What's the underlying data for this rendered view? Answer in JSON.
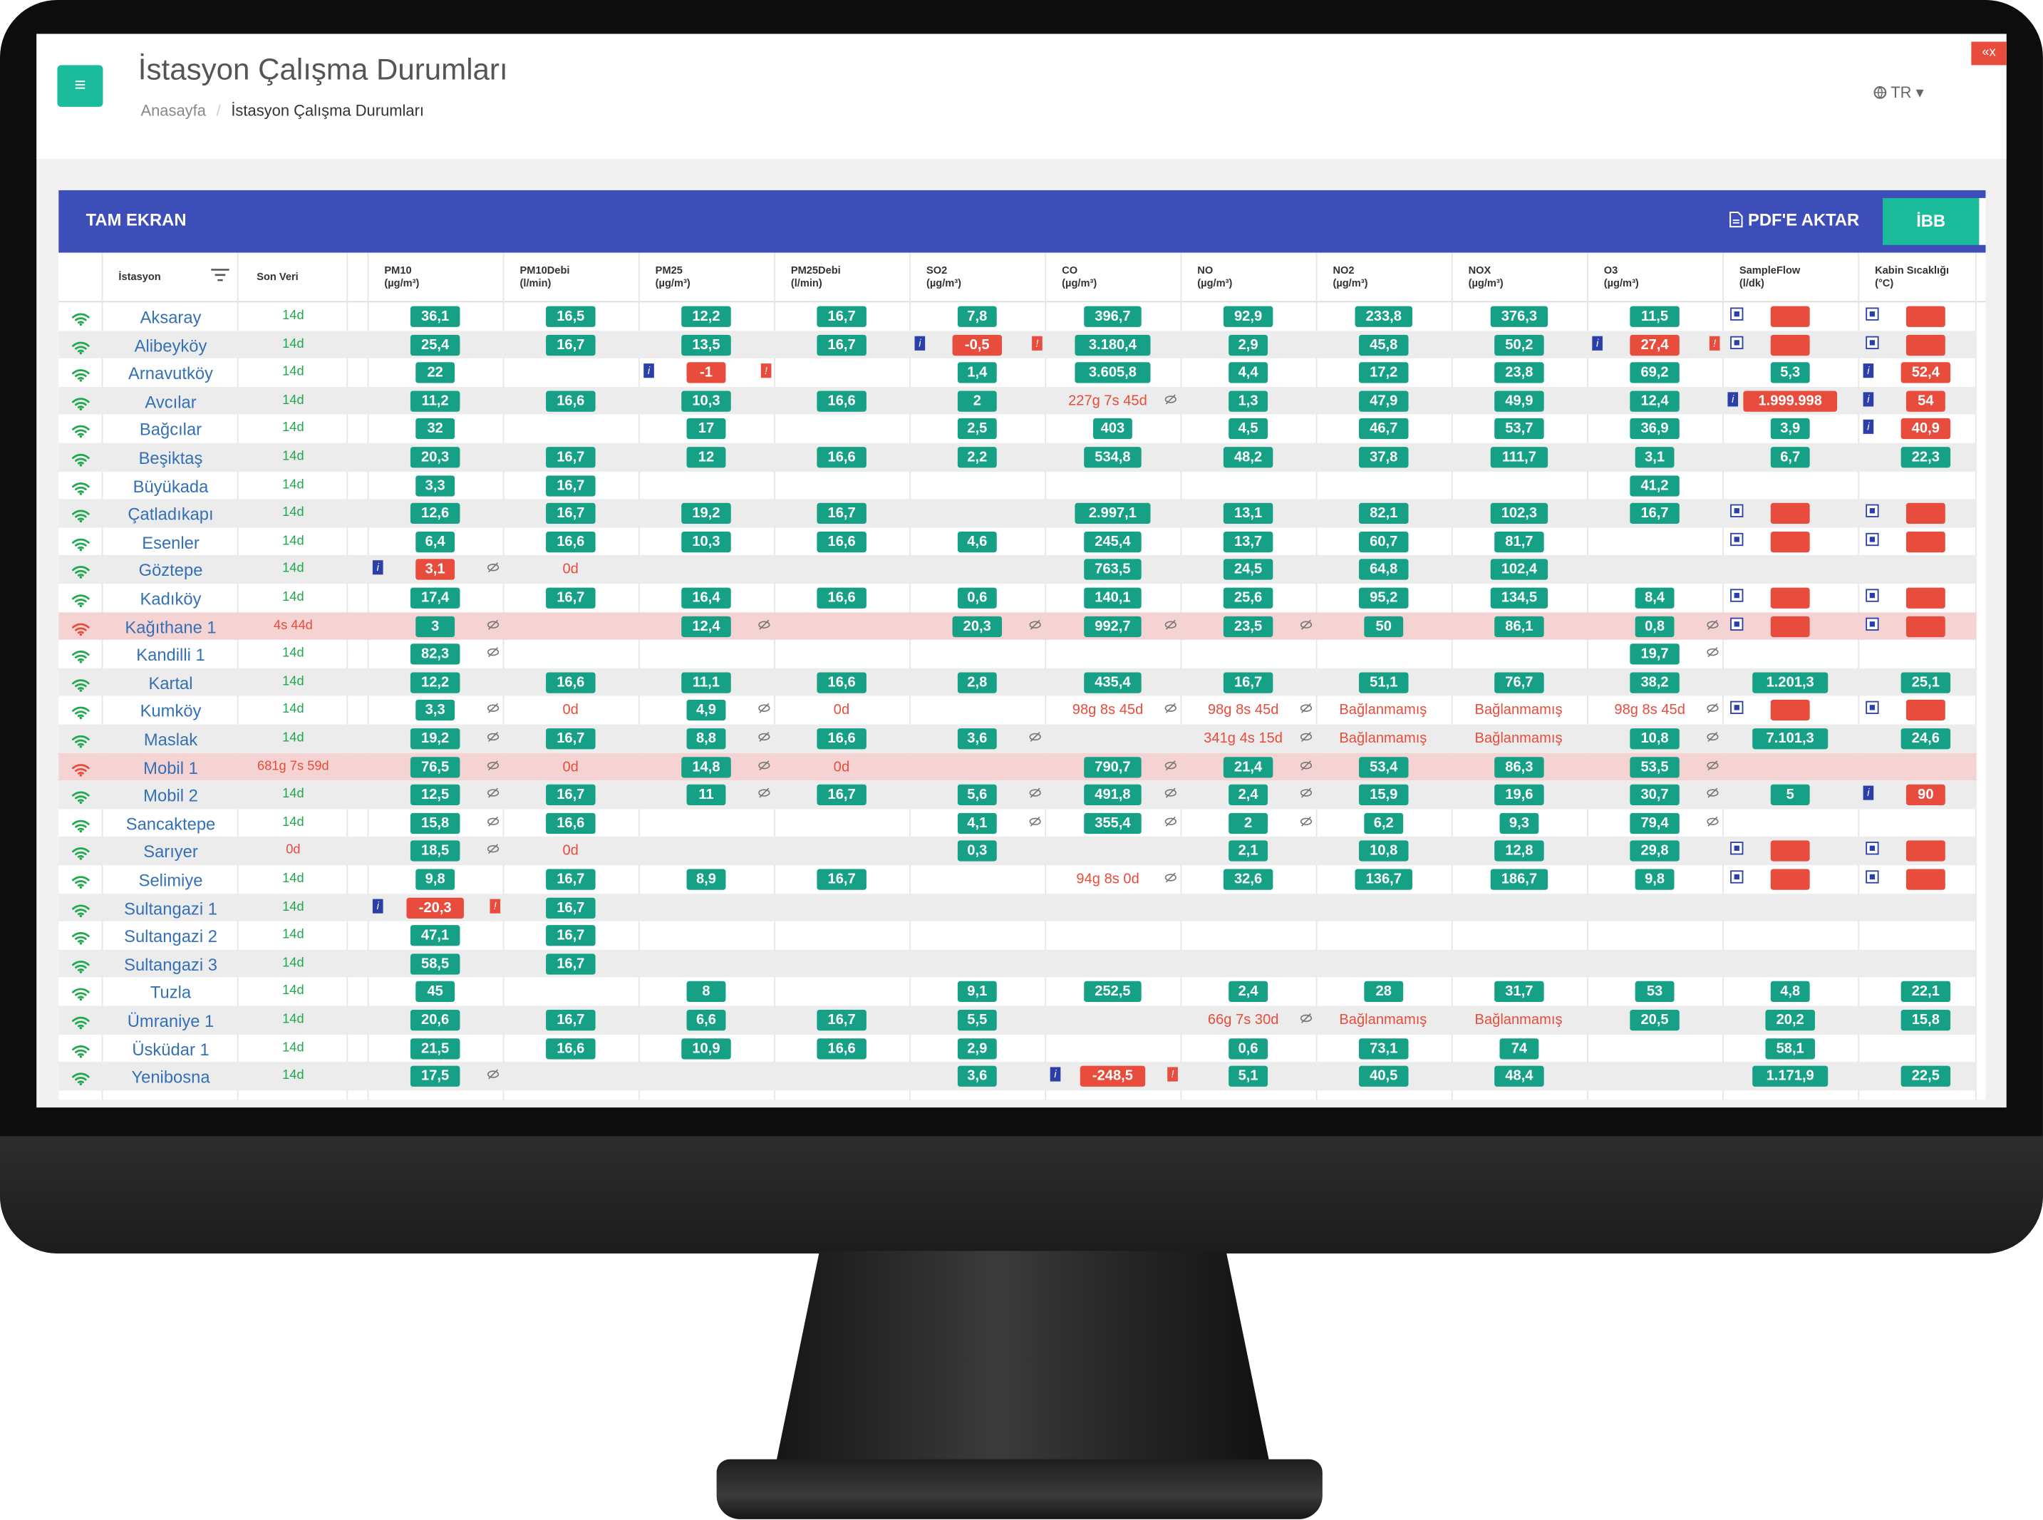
{
  "header": {
    "title": "İstasyon Çalışma Durumları",
    "breadcrumb_home": "Anasayfa",
    "breadcrumb_current": "İstasyon Çalışma Durumları",
    "lang": "TR",
    "menu_icon": "≡",
    "close_icon": "«x"
  },
  "panel": {
    "fullscreen": "TAM EKRAN",
    "pdf": "PDF'E AKTAR",
    "ibb": "İBB"
  },
  "columns": [
    {
      "key": "station",
      "title": "İstasyon"
    },
    {
      "key": "last",
      "title": "Son Veri"
    },
    {
      "key": "pm10",
      "title": "PM10",
      "unit": "(µg/m³)"
    },
    {
      "key": "pm10d",
      "title": "PM10Debi",
      "unit": "(l/min)"
    },
    {
      "key": "pm25",
      "title": "PM25",
      "unit": "(µg/m³)"
    },
    {
      "key": "pm25d",
      "title": "PM25Debi",
      "unit": "(l/min)"
    },
    {
      "key": "so2",
      "title": "SO2",
      "unit": "(µg/m³)"
    },
    {
      "key": "co",
      "title": "CO",
      "unit": "(µg/m³)"
    },
    {
      "key": "no",
      "title": "NO",
      "unit": "(µg/m³)"
    },
    {
      "key": "no2",
      "title": "NO2",
      "unit": "(µg/m³)"
    },
    {
      "key": "nox",
      "title": "NOX",
      "unit": "(µg/m³)"
    },
    {
      "key": "o3",
      "title": "O3",
      "unit": "(µg/m³)"
    },
    {
      "key": "sf",
      "title": "SampleFlow",
      "unit": "(l/dk)"
    },
    {
      "key": "kabin",
      "title": "Kabin Sıcaklığı",
      "unit": "(°C)"
    }
  ],
  "colors": {
    "green": "#16a085",
    "red": "#e74c3c",
    "panel": "#3e4eb8",
    "link": "#3470b6"
  },
  "rows": [
    {
      "name": "Aksaray",
      "last": "14d",
      "cells": [
        "g:36,1",
        "g:16,5",
        "g:12,2",
        "g:16,7",
        "g:7,8",
        "g:396,7",
        "g:92,9",
        "g:233,8",
        "g:376,3",
        "g:11,5",
        "q:|r:",
        "q:|r:"
      ]
    },
    {
      "name": "Alibeyköy",
      "last": "14d",
      "cells": [
        "g:25,4",
        "g:16,7",
        "g:13,5",
        "g:16,7",
        "i:|r:-0,5|ir:",
        "g:3.180,4",
        "g:2,9",
        "g:45,8",
        "g:50,2",
        "i:|r:27,4|ir:",
        "q:|r:",
        "q:|r:"
      ]
    },
    {
      "name": "Arnavutköy",
      "last": "14d",
      "cells": [
        "g:22",
        "",
        "i:|r:-1|ir:",
        "",
        "g:1,4",
        "g:3.605,8",
        "g:4,4",
        "g:17,2",
        "g:23,8",
        "g:69,2",
        "g:5,3",
        "i:|r:52,4"
      ]
    },
    {
      "name": "Avcılar",
      "last": "14d",
      "cells": [
        "g:11,2",
        "g:16,6",
        "g:10,3",
        "g:16,6",
        "g:2",
        "t:227g 7s 45d|e",
        "g:1,3",
        "g:47,9",
        "g:49,9",
        "g:12,4",
        "i:|r:1.999.998",
        "i:|r:54"
      ]
    },
    {
      "name": "Bağcılar",
      "last": "14d",
      "cells": [
        "g:32",
        "",
        "g:17",
        "",
        "g:2,5",
        "g:403",
        "g:4,5",
        "g:46,7",
        "g:53,7",
        "g:36,9",
        "g:3,9",
        "i:|r:40,9"
      ]
    },
    {
      "name": "Beşiktaş",
      "last": "14d",
      "cells": [
        "g:20,3",
        "g:16,7",
        "g:12",
        "g:16,6",
        "g:2,2",
        "g:534,8",
        "g:48,2",
        "g:37,8",
        "g:111,7",
        "g:3,1",
        "g:6,7",
        "g:22,3"
      ]
    },
    {
      "name": "Büyükada",
      "last": "14d",
      "cells": [
        "g:3,3",
        "g:16,7",
        "",
        "",
        "",
        "",
        "",
        "",
        "",
        "g:41,2",
        "",
        ""
      ]
    },
    {
      "name": "Çatladıkapı",
      "last": "14d",
      "cells": [
        "g:12,6",
        "g:16,7",
        "g:19,2",
        "g:16,7",
        "",
        "g:2.997,1",
        "g:13,1",
        "g:82,1",
        "g:102,3",
        "g:16,7",
        "q:|r:",
        "q:|r:"
      ]
    },
    {
      "name": "Esenler",
      "last": "14d",
      "cells": [
        "g:6,4",
        "g:16,6",
        "g:10,3",
        "g:16,6",
        "g:4,6",
        "g:245,4",
        "g:13,7",
        "g:60,7",
        "g:81,7",
        "",
        "q:|r:",
        "q:|r:"
      ]
    },
    {
      "name": "Göztepe",
      "last": "14d",
      "cells": [
        "i:|r:3,1|e",
        "t:0d",
        "",
        "",
        "",
        "g:763,5",
        "g:24,5",
        "g:64,8",
        "g:102,4",
        "",
        "",
        ""
      ]
    },
    {
      "name": "Kadıköy",
      "last": "14d",
      "cells": [
        "g:17,4",
        "g:16,7",
        "g:16,4",
        "g:16,6",
        "g:0,6",
        "g:140,1",
        "g:25,6",
        "g:95,2",
        "g:134,5",
        "g:8,4",
        "q:|r:",
        "q:|r:"
      ]
    },
    {
      "name": "Kağıthane 1",
      "last": "4s 44d",
      "alert": true,
      "cells": [
        "g:3|e",
        "",
        "g:12,4|e",
        "",
        "g:20,3|e",
        "g:992,7|e",
        "g:23,5|e",
        "g:50",
        "g:86,1",
        "g:0,8|e",
        "q:|r:",
        "q:|r:"
      ]
    },
    {
      "name": "Kandilli 1",
      "last": "14d",
      "cells": [
        "g:82,3|e",
        "",
        "",
        "",
        "",
        "",
        "",
        "",
        "",
        "g:19,7|e",
        "",
        ""
      ]
    },
    {
      "name": "Kartal",
      "last": "14d",
      "cells": [
        "g:12,2",
        "g:16,6",
        "g:11,1",
        "g:16,6",
        "g:2,8",
        "g:435,4",
        "g:16,7",
        "g:51,1",
        "g:76,7",
        "g:38,2",
        "g:1.201,3",
        "g:25,1"
      ]
    },
    {
      "name": "Kumköy",
      "last": "14d",
      "cells": [
        "g:3,3|e",
        "t:0d",
        "g:4,9|e",
        "t:0d",
        "",
        "t:98g 8s 45d|e",
        "t:98g 8s 45d|e",
        "t:Bağlanmamış",
        "t:Bağlanmamış",
        "t:98g 8s 45d|e",
        "q:|r:",
        "q:|r:"
      ]
    },
    {
      "name": "Maslak",
      "last": "14d",
      "cells": [
        "g:19,2|e",
        "g:16,7",
        "g:8,8|e",
        "g:16,6",
        "g:3,6|e",
        "",
        "t:341g 4s 15d|e",
        "t:Bağlanmamış",
        "t:Bağlanmamış",
        "g:10,8|e",
        "g:7.101,3",
        "g:24,6"
      ]
    },
    {
      "name": "Mobil 1",
      "last": "681g 7s 59d",
      "alert": true,
      "cells": [
        "g:76,5|e",
        "t:0d",
        "g:14,8|e",
        "t:0d",
        "",
        "g:790,7|e",
        "g:21,4|e",
        "g:53,4",
        "g:86,3",
        "g:53,5|e",
        "",
        ""
      ]
    },
    {
      "name": "Mobil 2",
      "last": "14d",
      "cells": [
        "g:12,5|e",
        "g:16,7",
        "g:11|e",
        "g:16,7",
        "g:5,6|e",
        "g:491,8|e",
        "g:2,4|e",
        "g:15,9",
        "g:19,6",
        "g:30,7|e",
        "g:5",
        "i:|r:90"
      ]
    },
    {
      "name": "Sancaktepe",
      "last": "14d",
      "cells": [
        "g:15,8|e",
        "g:16,6",
        "",
        "",
        "g:4,1|e",
        "g:355,4|e",
        "g:2|e",
        "g:6,2",
        "g:9,3",
        "g:79,4|e",
        "",
        ""
      ]
    },
    {
      "name": "Sarıyer",
      "last": "0d",
      "cells": [
        "g:18,5|e",
        "t:0d",
        "",
        "",
        "g:0,3",
        "",
        "g:2,1",
        "g:10,8",
        "g:12,8",
        "g:29,8",
        "q:|r:",
        "q:|r:"
      ]
    },
    {
      "name": "Selimiye",
      "last": "14d",
      "cells": [
        "g:9,8",
        "g:16,7",
        "g:8,9",
        "g:16,7",
        "",
        "t:94g 8s 0d|e",
        "g:32,6",
        "g:136,7",
        "g:186,7",
        "g:9,8",
        "q:|r:",
        "q:|r:"
      ]
    },
    {
      "name": "Sultangazi 1",
      "last": "14d",
      "cells": [
        "i:|r:-20,3|ir:",
        "g:16,7",
        "",
        "",
        "",
        "",
        "",
        "",
        "",
        "",
        "",
        ""
      ]
    },
    {
      "name": "Sultangazi 2",
      "last": "14d",
      "cells": [
        "g:47,1",
        "g:16,7",
        "",
        "",
        "",
        "",
        "",
        "",
        "",
        "",
        "",
        ""
      ]
    },
    {
      "name": "Sultangazi 3",
      "last": "14d",
      "cells": [
        "g:58,5",
        "g:16,7",
        "",
        "",
        "",
        "",
        "",
        "",
        "",
        "",
        "",
        ""
      ]
    },
    {
      "name": "Tuzla",
      "last": "14d",
      "cells": [
        "g:45",
        "",
        "g:8",
        "",
        "g:9,1",
        "g:252,5",
        "g:2,4",
        "g:28",
        "g:31,7",
        "g:53",
        "g:4,8",
        "g:22,1"
      ]
    },
    {
      "name": "Ümraniye 1",
      "last": "14d",
      "cells": [
        "g:20,6",
        "g:16,7",
        "g:6,6",
        "g:16,7",
        "g:5,5",
        "",
        "t:66g 7s 30d|e",
        "t:Bağlanmamış",
        "t:Bağlanmamış",
        "g:20,5",
        "g:20,2",
        "g:15,8"
      ]
    },
    {
      "name": "Üsküdar 1",
      "last": "14d",
      "cells": [
        "g:21,5",
        "g:16,6",
        "g:10,9",
        "g:16,6",
        "g:2,9",
        "",
        "g:0,6",
        "g:73,1",
        "g:74",
        "",
        "g:58,1",
        ""
      ]
    },
    {
      "name": "Yenibosna",
      "last": "14d",
      "cells": [
        "g:17,5|e",
        "",
        "",
        "",
        "g:3,6",
        "i:|r:-248,5|ir:",
        "g:5,1",
        "g:40,5",
        "g:48,4",
        "",
        "g:1.171,9",
        "g:22,5"
      ]
    }
  ]
}
